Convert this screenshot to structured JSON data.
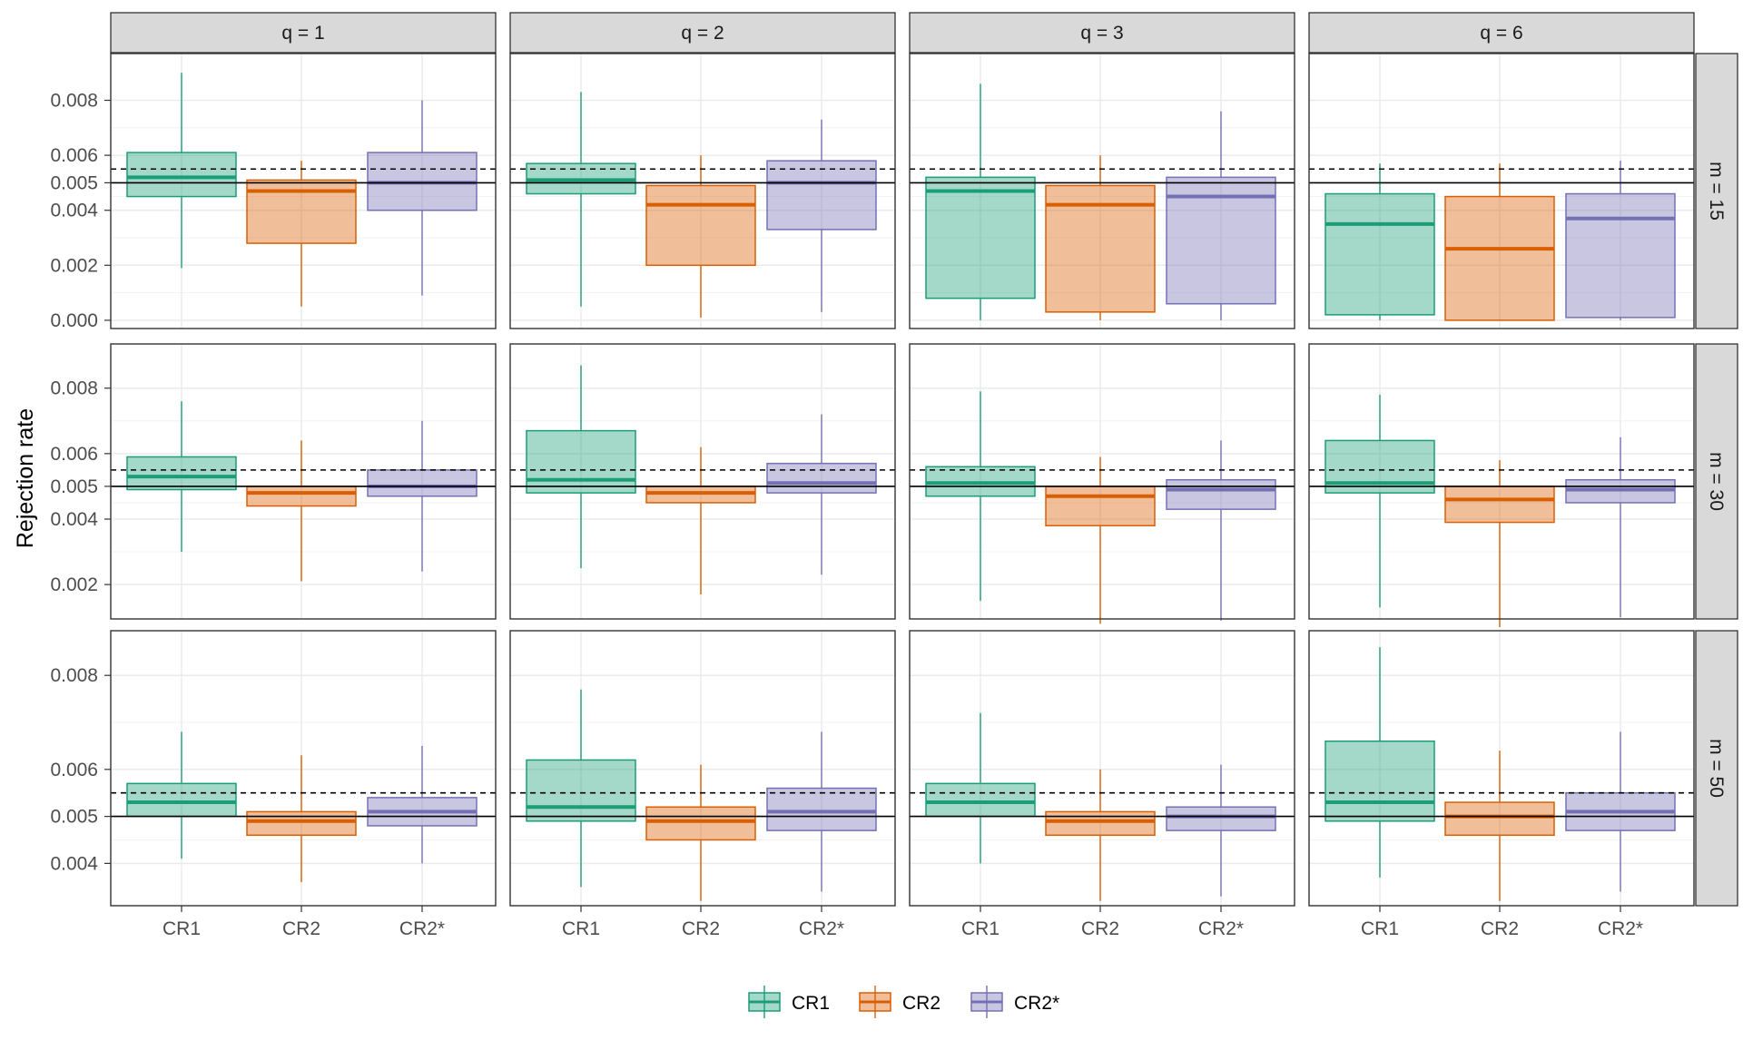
{
  "chart_data": {
    "type": "boxplot",
    "title": "",
    "xlabel": "",
    "ylabel": "Rejection rate",
    "categories": [
      "CR1",
      "CR2",
      "CR2*"
    ],
    "legend": {
      "position": "bottom",
      "entries": [
        "CR1",
        "CR2",
        "CR2*"
      ]
    },
    "colors": {
      "CR1": "#1b9e77",
      "CR2": "#d95f02",
      "CR2*": "#7570b3",
      "strip_background": "#d9d9d9",
      "grid": "#ebebeb"
    },
    "column_facets": [
      "q = 1",
      "q = 2",
      "q = 3",
      "q = 6"
    ],
    "row_facets": [
      {
        "label": "m = 15",
        "ylim": [
          -0.0003,
          0.0097
        ],
        "ticks": [
          0.0,
          0.002,
          0.004,
          0.005,
          0.006,
          0.008
        ],
        "tick_labels": [
          "0.000",
          "0.002",
          "0.004",
          "0.005",
          "0.006",
          "0.008"
        ],
        "panels": [
          {
            "q": "q = 1",
            "boxes": [
              {
                "name": "CR1",
                "min": 0.0019,
                "q1": 0.0045,
                "median": 0.0052,
                "q3": 0.0061,
                "max": 0.009
              },
              {
                "name": "CR2",
                "min": 0.0005,
                "q1": 0.0028,
                "median": 0.0047,
                "q3": 0.0051,
                "max": 0.0058
              },
              {
                "name": "CR2*",
                "min": 0.0009,
                "q1": 0.004,
                "median": 0.005,
                "q3": 0.0061,
                "max": 0.008
              }
            ]
          },
          {
            "q": "q = 2",
            "boxes": [
              {
                "name": "CR1",
                "min": 0.0005,
                "q1": 0.0046,
                "median": 0.0051,
                "q3": 0.0057,
                "max": 0.0083
              },
              {
                "name": "CR2",
                "min": 0.0001,
                "q1": 0.002,
                "median": 0.0042,
                "q3": 0.0049,
                "max": 0.006
              },
              {
                "name": "CR2*",
                "min": 0.0003,
                "q1": 0.0033,
                "median": 0.005,
                "q3": 0.0058,
                "max": 0.0073
              }
            ]
          },
          {
            "q": "q = 3",
            "boxes": [
              {
                "name": "CR1",
                "min": 0.0,
                "q1": 0.0008,
                "median": 0.0047,
                "q3": 0.0052,
                "max": 0.0086
              },
              {
                "name": "CR2",
                "min": 0.0,
                "q1": 0.0003,
                "median": 0.0042,
                "q3": 0.0049,
                "max": 0.006
              },
              {
                "name": "CR2*",
                "min": 0.0,
                "q1": 0.0006,
                "median": 0.0045,
                "q3": 0.0052,
                "max": 0.0076
              }
            ]
          },
          {
            "q": "q = 6",
            "boxes": [
              {
                "name": "CR1",
                "min": 0.0,
                "q1": 0.0002,
                "median": 0.0035,
                "q3": 0.0046,
                "max": 0.0057
              },
              {
                "name": "CR2",
                "min": 0.0,
                "q1": 0.0,
                "median": 0.0026,
                "q3": 0.0045,
                "max": 0.0057
              },
              {
                "name": "CR2*",
                "min": 0.0,
                "q1": 0.0001,
                "median": 0.0037,
                "q3": 0.0046,
                "max": 0.0058
              }
            ]
          }
        ]
      },
      {
        "label": "m = 30",
        "ylim": [
          0.00095,
          0.00935
        ],
        "ticks": [
          0.002,
          0.004,
          0.005,
          0.006,
          0.008
        ],
        "tick_labels": [
          "0.002",
          "0.004",
          "0.005",
          "0.006",
          "0.008"
        ],
        "panels": [
          {
            "q": "q = 1",
            "boxes": [
              {
                "name": "CR1",
                "min": 0.003,
                "q1": 0.0049,
                "median": 0.0053,
                "q3": 0.0059,
                "max": 0.0076
              },
              {
                "name": "CR2",
                "min": 0.0021,
                "q1": 0.0044,
                "median": 0.0048,
                "q3": 0.005,
                "max": 0.0064
              },
              {
                "name": "CR2*",
                "min": 0.0024,
                "q1": 0.0047,
                "median": 0.005,
                "q3": 0.0055,
                "max": 0.007
              }
            ]
          },
          {
            "q": "q = 2",
            "boxes": [
              {
                "name": "CR1",
                "min": 0.0025,
                "q1": 0.0048,
                "median": 0.0052,
                "q3": 0.0067,
                "max": 0.0087
              },
              {
                "name": "CR2",
                "min": 0.0017,
                "q1": 0.0045,
                "median": 0.0048,
                "q3": 0.005,
                "max": 0.0062
              },
              {
                "name": "CR2*",
                "min": 0.0023,
                "q1": 0.0048,
                "median": 0.0051,
                "q3": 0.0057,
                "max": 0.0072
              }
            ]
          },
          {
            "q": "q = 3",
            "boxes": [
              {
                "name": "CR1",
                "min": 0.0015,
                "q1": 0.0047,
                "median": 0.0051,
                "q3": 0.0056,
                "max": 0.0079
              },
              {
                "name": "CR2",
                "min": 0.0008,
                "q1": 0.0038,
                "median": 0.0047,
                "q3": 0.005,
                "max": 0.0059
              },
              {
                "name": "CR2*",
                "min": 0.0009,
                "q1": 0.0043,
                "median": 0.0049,
                "q3": 0.0052,
                "max": 0.0064
              }
            ]
          },
          {
            "q": "q = 6",
            "boxes": [
              {
                "name": "CR1",
                "min": 0.0013,
                "q1": 0.0048,
                "median": 0.0051,
                "q3": 0.0064,
                "max": 0.0078
              },
              {
                "name": "CR2",
                "min": 0.0007,
                "q1": 0.0039,
                "median": 0.0046,
                "q3": 0.005,
                "max": 0.0058
              },
              {
                "name": "CR2*",
                "min": 0.001,
                "q1": 0.0045,
                "median": 0.0049,
                "q3": 0.0052,
                "max": 0.0065
              }
            ]
          }
        ]
      },
      {
        "label": "m = 50",
        "ylim": [
          0.0031,
          0.00895
        ],
        "ticks": [
          0.004,
          0.005,
          0.006,
          0.008
        ],
        "tick_labels": [
          "0.004",
          "0.005",
          "0.006",
          "0.008"
        ],
        "panels": [
          {
            "q": "q = 1",
            "boxes": [
              {
                "name": "CR1",
                "min": 0.0041,
                "q1": 0.005,
                "median": 0.0053,
                "q3": 0.0057,
                "max": 0.0068
              },
              {
                "name": "CR2",
                "min": 0.0036,
                "q1": 0.0046,
                "median": 0.0049,
                "q3": 0.0051,
                "max": 0.0063
              },
              {
                "name": "CR2*",
                "min": 0.004,
                "q1": 0.0048,
                "median": 0.0051,
                "q3": 0.0054,
                "max": 0.0065
              }
            ]
          },
          {
            "q": "q = 2",
            "boxes": [
              {
                "name": "CR1",
                "min": 0.0035,
                "q1": 0.0049,
                "median": 0.0052,
                "q3": 0.0062,
                "max": 0.0077
              },
              {
                "name": "CR2",
                "min": 0.0032,
                "q1": 0.0045,
                "median": 0.0049,
                "q3": 0.0052,
                "max": 0.0061
              },
              {
                "name": "CR2*",
                "min": 0.0034,
                "q1": 0.0047,
                "median": 0.0051,
                "q3": 0.0056,
                "max": 0.0068
              }
            ]
          },
          {
            "q": "q = 3",
            "boxes": [
              {
                "name": "CR1",
                "min": 0.004,
                "q1": 0.005,
                "median": 0.0053,
                "q3": 0.0057,
                "max": 0.0072
              },
              {
                "name": "CR2",
                "min": 0.0032,
                "q1": 0.0046,
                "median": 0.0049,
                "q3": 0.0051,
                "max": 0.006
              },
              {
                "name": "CR2*",
                "min": 0.0033,
                "q1": 0.0047,
                "median": 0.005,
                "q3": 0.0052,
                "max": 0.0061
              }
            ]
          },
          {
            "q": "q = 6",
            "boxes": [
              {
                "name": "CR1",
                "min": 0.0037,
                "q1": 0.0049,
                "median": 0.0053,
                "q3": 0.0066,
                "max": 0.0086
              },
              {
                "name": "CR2",
                "min": 0.0032,
                "q1": 0.0046,
                "median": 0.005,
                "q3": 0.0053,
                "max": 0.0064
              },
              {
                "name": "CR2*",
                "min": 0.0034,
                "q1": 0.0047,
                "median": 0.0051,
                "q3": 0.0055,
                "max": 0.0068
              }
            ]
          }
        ]
      }
    ],
    "reference_lines": [
      {
        "value": 0.005,
        "style": "solid"
      },
      {
        "value": 0.0055,
        "style": "dashed"
      }
    ]
  }
}
